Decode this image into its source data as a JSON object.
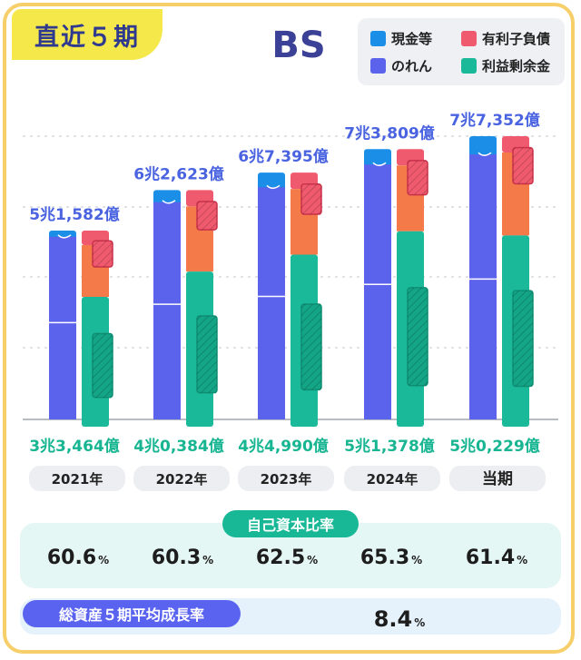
{
  "period_tag": "直近５期",
  "title": "BS",
  "legend": [
    {
      "label": "現金等",
      "color": "#1b8fe8"
    },
    {
      "label": "有利子負債",
      "color": "#f05a6e"
    },
    {
      "label": "のれん",
      "color": "#5b63ec"
    },
    {
      "label": "利益剰余金",
      "color": "#19b999"
    }
  ],
  "colors": {
    "cash": "#1b8fe8",
    "goodwill": "#5b63ec",
    "other_assets": "#5b63ec",
    "debt": "#f05a6e",
    "other_liab": "#f47a4a",
    "retained": "#19b999",
    "equity_other": "#19b999",
    "top_label": "#4a63e0",
    "bottom_label": "#17b591"
  },
  "chart_data": {
    "type": "bar",
    "categories": [
      "2021年",
      "2022年",
      "2023年",
      "2024年",
      "当期"
    ],
    "total_assets_labels": [
      "5兆1,582億",
      "6兆2,623億",
      "6兆7,395億",
      "7兆3,809億",
      "7兆7,352億"
    ],
    "total_assets": [
      51582,
      62623,
      67395,
      73809,
      77352
    ],
    "equity_labels": [
      "3兆3,464億",
      "4兆0,384億",
      "4兆4,990億",
      "5兆1,378億",
      "5兆0,229億"
    ],
    "equity": [
      33464,
      40384,
      44990,
      51378,
      50229
    ],
    "series": [
      {
        "name": "現金等",
        "values": [
          1700,
          3300,
          4000,
          4200,
          5000
        ]
      },
      {
        "name": "のれん",
        "values": [
          22400,
          27000,
          28000,
          31000,
          34000
        ]
      },
      {
        "name": "有利子負債",
        "values": [
          13000,
          14000,
          15000,
          17000,
          18000
        ]
      },
      {
        "name": "利益剰余金",
        "values": [
          30000,
          36000,
          41000,
          47000,
          46000
        ]
      }
    ],
    "unit": "億"
  },
  "ratios": {
    "title": "自己資本比率",
    "values": [
      "60.6",
      "60.3",
      "62.5",
      "65.3",
      "61.4"
    ],
    "unit": "%"
  },
  "growth": {
    "title": "総資産５期平均成長率",
    "value": "8.4",
    "unit": "%"
  }
}
